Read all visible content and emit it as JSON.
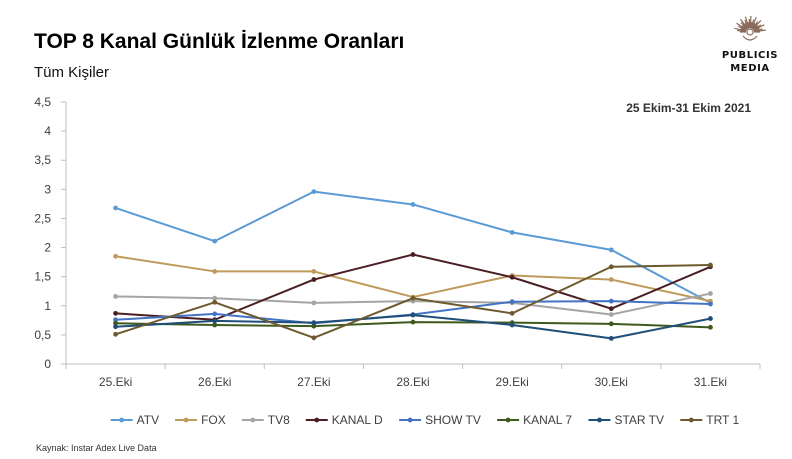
{
  "header": {
    "title": "TOP 8 Kanal Günlük İzlenme Oranları",
    "subtitle": "Tüm Kişiler"
  },
  "logo": {
    "line1": "PUBLICIS",
    "line2": "MEDIA",
    "icon": "sunburst-logo-icon",
    "color": "#8a6a5a"
  },
  "source": "Kaynak: Instar  Adex Live Data",
  "chart_data": {
    "type": "line",
    "title": "TOP 8 Kanal Günlük İzlenme Oranları",
    "subtitle": "Tüm Kişiler",
    "date_range_label": "25 Ekim-31 Ekim 2021",
    "categories": [
      "25.Eki",
      "26.Eki",
      "27.Eki",
      "28.Eki",
      "29.Eki",
      "30.Eki",
      "31.Eki"
    ],
    "ylim": [
      0,
      4.5
    ],
    "yticks": [
      0,
      0.5,
      1,
      1.5,
      2,
      2.5,
      3,
      3.5,
      4,
      4.5
    ],
    "ytick_labels": [
      "0",
      "0,5",
      "1",
      "1,5",
      "2",
      "2,5",
      "3",
      "3,5",
      "4",
      "4,5"
    ],
    "xlabel": "",
    "ylabel": "",
    "grid": false,
    "legend_position": "bottom",
    "series": [
      {
        "name": "ATV",
        "color": "#5b9bd5",
        "values": [
          2.68,
          2.11,
          2.96,
          2.74,
          2.26,
          1.96,
          1.05
        ]
      },
      {
        "name": "FOX",
        "color": "#c09a5b",
        "values": [
          1.85,
          1.59,
          1.59,
          1.15,
          1.52,
          1.45,
          1.08
        ]
      },
      {
        "name": "TV8",
        "color": "#a5a5a5",
        "values": [
          1.16,
          1.13,
          1.05,
          1.08,
          1.05,
          0.85,
          1.21
        ]
      },
      {
        "name": "KANAL D",
        "color": "#4a1e22",
        "values": [
          0.87,
          0.76,
          1.45,
          1.88,
          1.49,
          0.95,
          1.67
        ]
      },
      {
        "name": "SHOW TV",
        "color": "#4472c4",
        "values": [
          0.76,
          0.86,
          0.7,
          0.85,
          1.07,
          1.08,
          1.03
        ]
      },
      {
        "name": "KANAL 7",
        "color": "#3e5a1e",
        "values": [
          0.7,
          0.67,
          0.65,
          0.72,
          0.71,
          0.69,
          0.63
        ]
      },
      {
        "name": "STAR TV",
        "color": "#1f4e79",
        "values": [
          0.64,
          0.74,
          0.71,
          0.84,
          0.67,
          0.44,
          0.78
        ]
      },
      {
        "name": "TRT 1",
        "color": "#6d5a2e",
        "values": [
          0.51,
          1.06,
          0.45,
          1.13,
          0.87,
          1.67,
          1.7
        ]
      }
    ]
  }
}
